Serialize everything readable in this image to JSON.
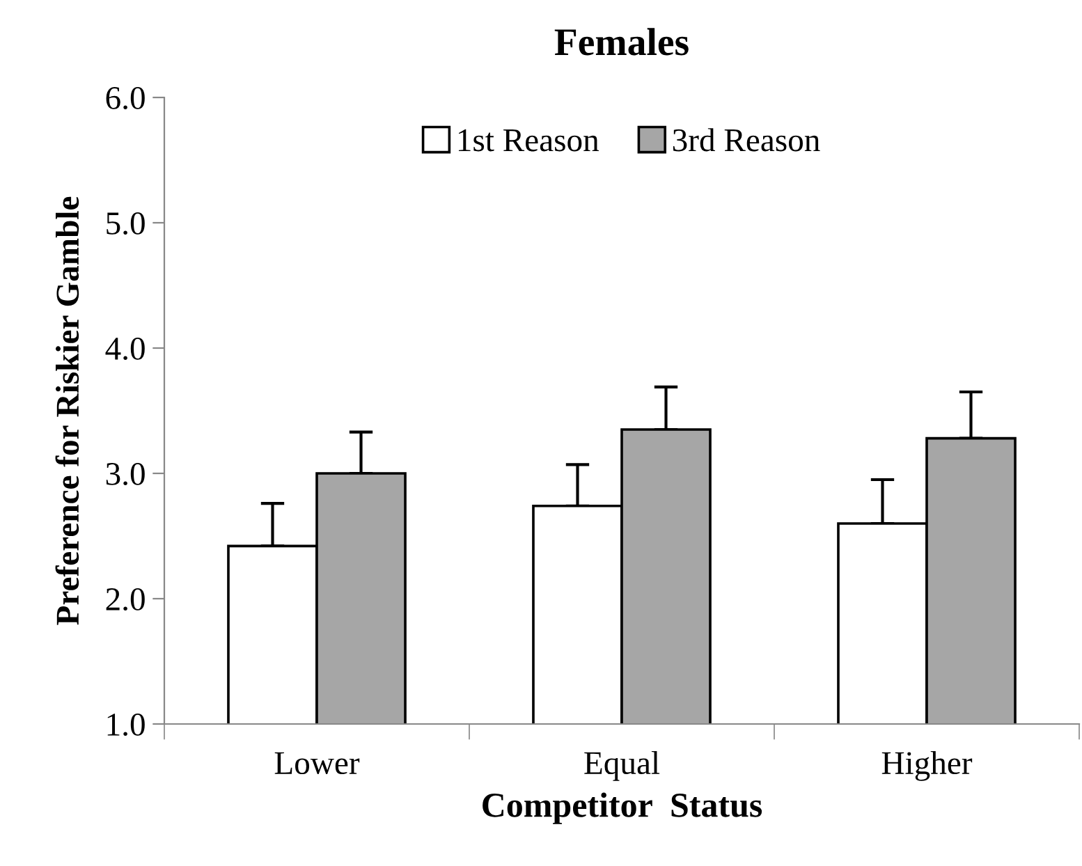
{
  "chart_data": {
    "type": "bar",
    "title": "Females",
    "xlabel": "Competitor  Status",
    "ylabel": "Preference for Riskier Gamble",
    "categories": [
      "Lower",
      "Equal",
      "Higher"
    ],
    "series": [
      {
        "name": "1st Reason",
        "color": "#ffffff",
        "values": [
          2.42,
          2.74,
          2.6
        ],
        "errors": [
          [
            2.42,
            2.76
          ],
          [
            2.74,
            3.07
          ],
          [
            2.6,
            2.95
          ]
        ]
      },
      {
        "name": "3rd Reason",
        "color": "#a6a6a6",
        "values": [
          3.0,
          3.35,
          3.28
        ],
        "errors": [
          [
            3.0,
            3.33
          ],
          [
            3.35,
            3.69
          ],
          [
            3.28,
            3.65
          ]
        ]
      }
    ],
    "ylim": [
      1,
      6
    ],
    "yticks": [
      {
        "value": 1,
        "label": "1.0"
      },
      {
        "value": 2,
        "label": "2.0"
      },
      {
        "value": 3,
        "label": "3.0"
      },
      {
        "value": 4,
        "label": "4.0"
      },
      {
        "value": 5,
        "label": "5.0"
      },
      {
        "value": 6,
        "label": "6.0"
      }
    ],
    "grid": false,
    "legend": "top"
  }
}
